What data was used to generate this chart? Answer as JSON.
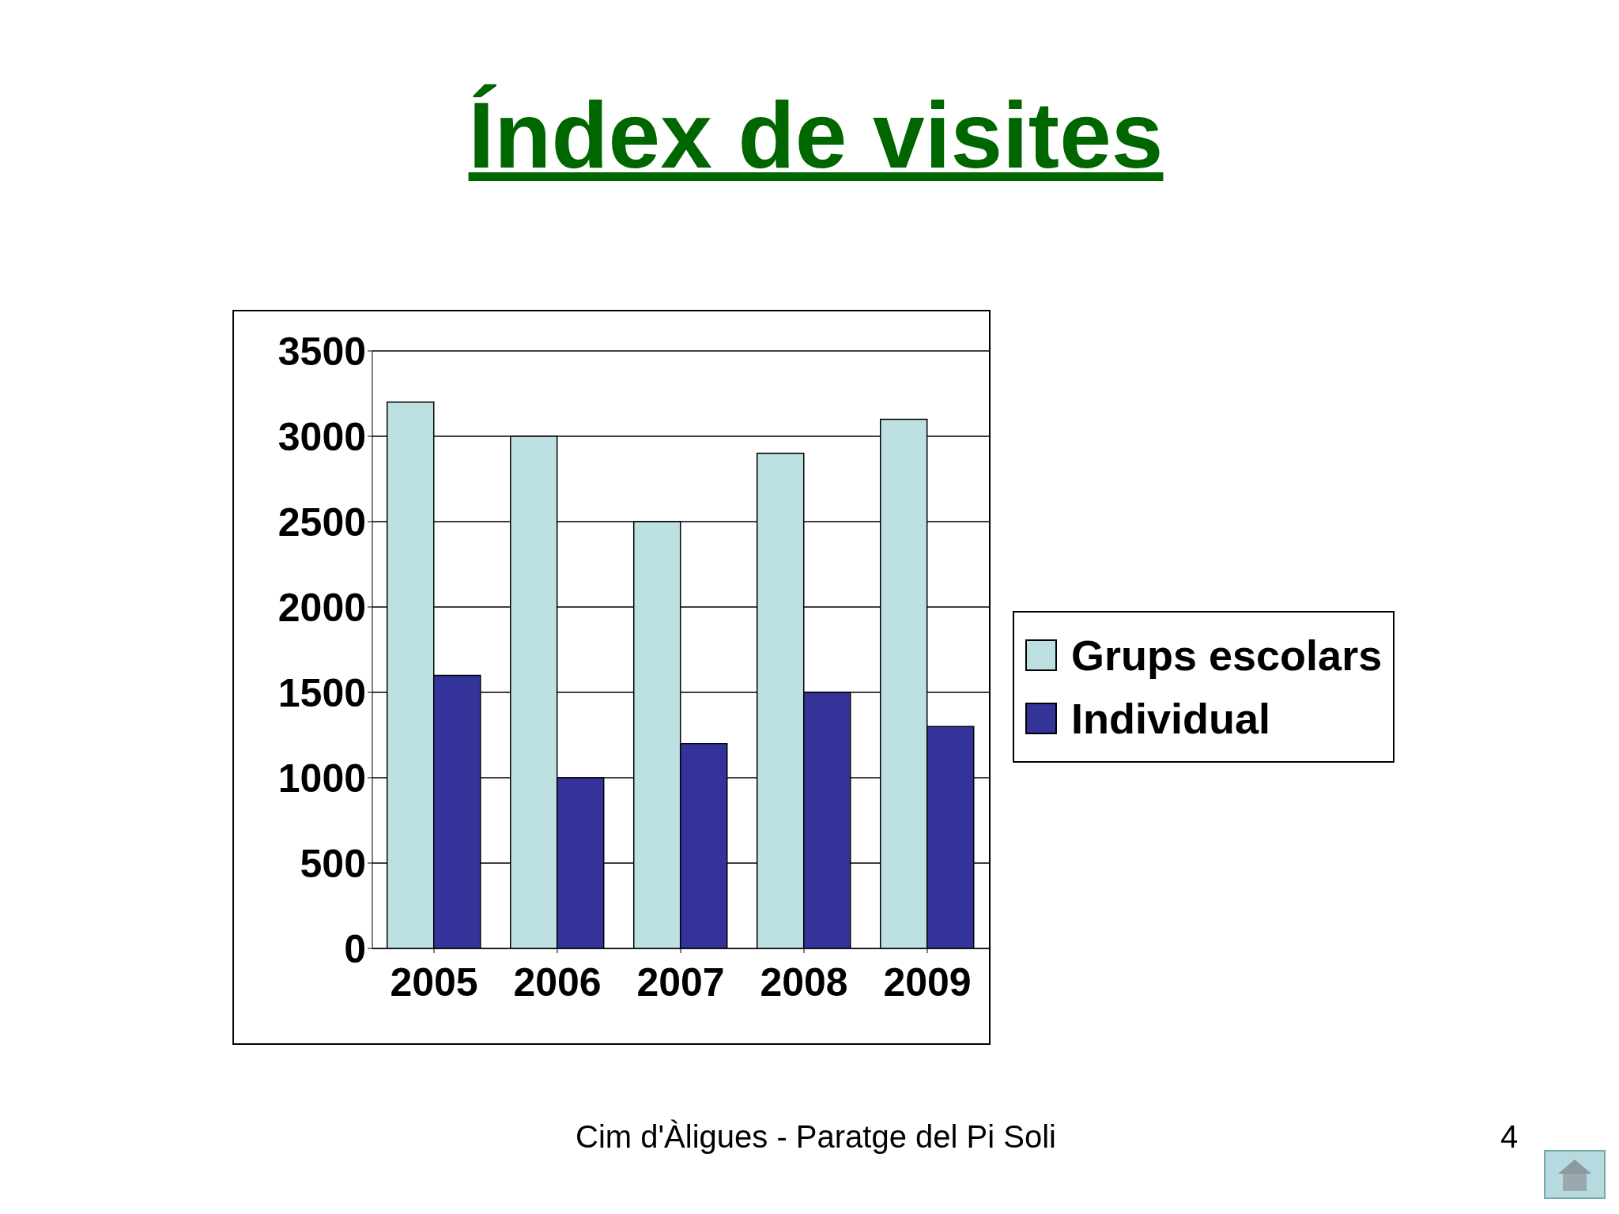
{
  "chart_data": {
    "type": "bar",
    "title": "Índex de visites",
    "categories": [
      "2005",
      "2006",
      "2007",
      "2008",
      "2009"
    ],
    "series": [
      {
        "name": "Grups escolars",
        "color": "#bde0e3",
        "values": [
          3200,
          3000,
          2500,
          2900,
          3100
        ]
      },
      {
        "name": "Individual",
        "color": "#333399",
        "values": [
          1600,
          1000,
          1200,
          1500,
          1300
        ]
      }
    ],
    "ylim": [
      0,
      3500
    ],
    "yticks": [
      0,
      500,
      1000,
      1500,
      2000,
      2500,
      3000,
      3500
    ],
    "grid": "y",
    "legend": "right",
    "annotations": [
      "Cim d'Àligues - Paratge del Pi Soli",
      "4"
    ]
  }
}
